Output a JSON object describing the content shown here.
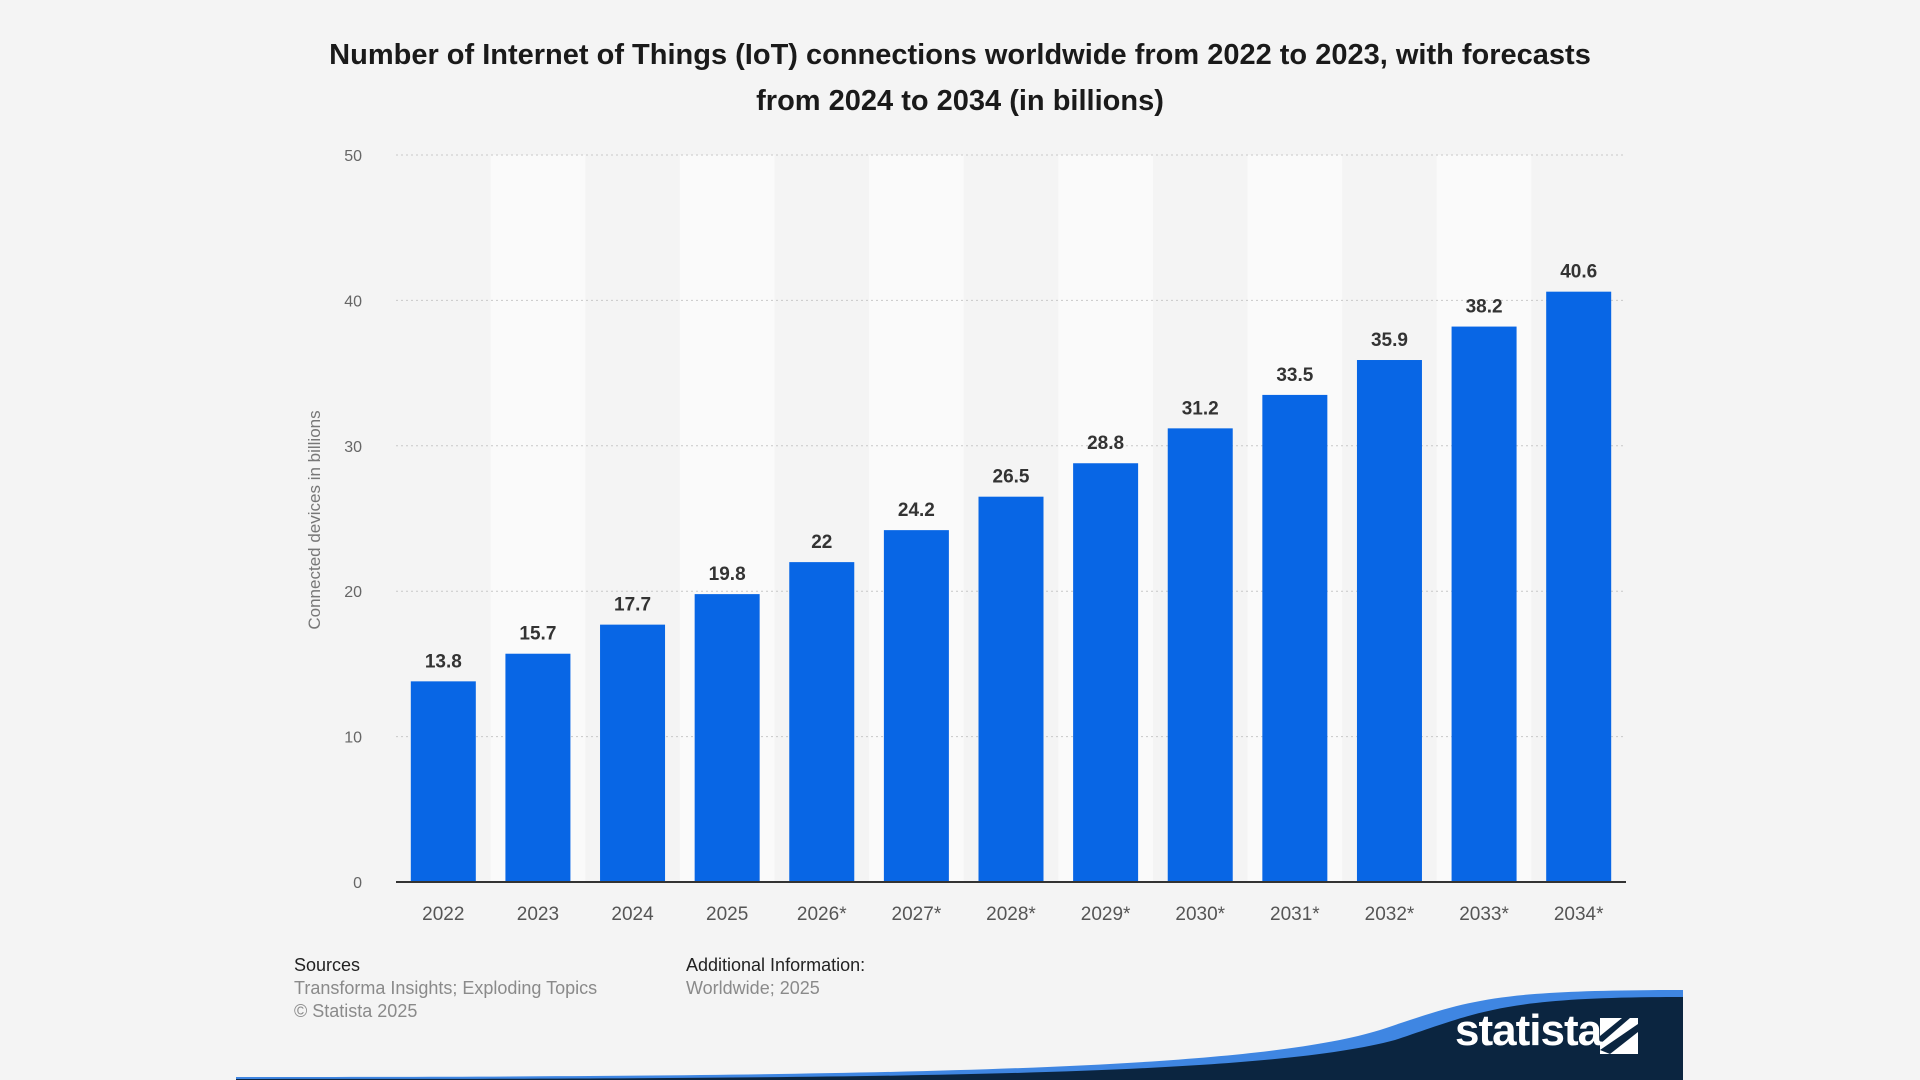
{
  "header": {
    "title": "Number of Internet of Things (IoT) connections worldwide from 2022 to 2023, with forecasts from 2024 to 2034 (in billions)"
  },
  "chart_data": {
    "type": "bar",
    "title": "Number of Internet of Things (IoT) connections worldwide from 2022 to 2023, with forecasts from 2024 to 2034 (in billions)",
    "xlabel": "",
    "ylabel": "Connected devices in billions",
    "categories": [
      "2022",
      "2023",
      "2024",
      "2025",
      "2026*",
      "2027*",
      "2028*",
      "2029*",
      "2030*",
      "2031*",
      "2032*",
      "2033*",
      "2034*"
    ],
    "values": [
      13.8,
      15.7,
      17.7,
      19.8,
      22,
      24.2,
      26.5,
      28.8,
      31.2,
      33.5,
      35.9,
      38.2,
      40.6
    ],
    "data_labels": [
      "13.8",
      "15.7",
      "17.7",
      "19.8",
      "22",
      "24.2",
      "26.5",
      "28.8",
      "31.2",
      "33.5",
      "35.9",
      "38.2",
      "40.6"
    ],
    "ylim": [
      0,
      50
    ],
    "yticks": [
      "0",
      "10",
      "20",
      "30",
      "40",
      "50"
    ],
    "grid": true,
    "legend": "none",
    "colors": {
      "bar": "#0866e5",
      "grid": "#c8c8c8",
      "axis": "#333333",
      "tick_text": "#666666",
      "value_text": "#333333",
      "band": "#fafafa"
    }
  },
  "footer": {
    "sources_heading": "Sources",
    "sources_line1": "Transforma Insights; Exploding Topics",
    "sources_line2": "© Statista 2025",
    "additional_heading": "Additional Information:",
    "additional_line1": "Worldwide; 2025"
  },
  "brand": {
    "name": "statista",
    "dark_color": "#0b2540",
    "accent_color": "#2b7ae0"
  }
}
